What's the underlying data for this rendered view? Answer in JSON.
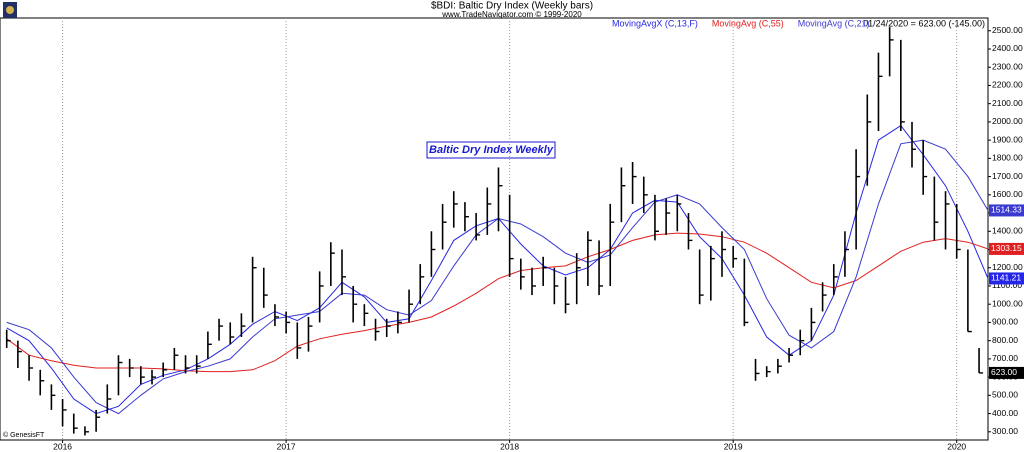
{
  "chart_data": {
    "type": "ohlc",
    "title": "$BDI:  Baltic Dry Index  (Weekly bars)",
    "subtitle": "www.TradeNavigator.com © 1999-2020",
    "status": "01/24/2020 = 623.00 (-145.00)",
    "annotation": "Baltic Dry Index Weekly",
    "watermark": "© GenesisFT",
    "color": "#000000",
    "grid": "x",
    "xlim": [
      2015.72,
      2020.14
    ],
    "xticks": [
      2016,
      2017,
      2018,
      2019,
      2020
    ],
    "ylim": [
      255,
      2570
    ],
    "yticks": [
      {
        "value": 300,
        "label": "300.00"
      },
      {
        "value": 400,
        "label": "400.00"
      },
      {
        "value": 500,
        "label": "500.00"
      },
      {
        "value": 600,
        "label": "600.00"
      },
      {
        "value": 700,
        "label": "700.00"
      },
      {
        "value": 800,
        "label": "800.00"
      },
      {
        "value": 900,
        "label": "900.00"
      },
      {
        "value": 1000,
        "label": "1000.00"
      },
      {
        "value": 1100,
        "label": "1100.00"
      },
      {
        "value": 1200,
        "label": "1200.00"
      },
      {
        "value": 1300,
        "label": "1300.00"
      },
      {
        "value": 1400,
        "label": "1400.00"
      },
      {
        "value": 1500,
        "label": "1500.00"
      },
      {
        "value": 1600,
        "label": "1600.00"
      },
      {
        "value": 1700,
        "label": "1700.00"
      },
      {
        "value": 1800,
        "label": "1800.00"
      },
      {
        "value": 1900,
        "label": "1900.00"
      },
      {
        "value": 2000,
        "label": "2000.00"
      },
      {
        "value": 2100,
        "label": "2100.00"
      },
      {
        "value": 2200,
        "label": "2200.00"
      },
      {
        "value": 2300,
        "label": "2300.00"
      },
      {
        "value": 2400,
        "label": "2400.00"
      },
      {
        "value": 2500,
        "label": "2500.00"
      }
    ],
    "x": [
      2015.75,
      2015.8,
      2015.85,
      2015.9,
      2015.95,
      2016.0,
      2016.05,
      2016.1,
      2016.15,
      2016.2,
      2016.25,
      2016.3,
      2016.35,
      2016.4,
      2016.45,
      2016.5,
      2016.55,
      2016.6,
      2016.65,
      2016.7,
      2016.75,
      2016.8,
      2016.85,
      2016.9,
      2016.95,
      2017.0,
      2017.05,
      2017.1,
      2017.15,
      2017.2,
      2017.25,
      2017.3,
      2017.35,
      2017.4,
      2017.45,
      2017.5,
      2017.55,
      2017.6,
      2017.65,
      2017.7,
      2017.75,
      2017.8,
      2017.85,
      2017.9,
      2017.95,
      2018.0,
      2018.05,
      2018.1,
      2018.15,
      2018.2,
      2018.25,
      2018.3,
      2018.35,
      2018.4,
      2018.45,
      2018.5,
      2018.55,
      2018.6,
      2018.65,
      2018.7,
      2018.75,
      2018.8,
      2018.85,
      2018.9,
      2018.95,
      2019.0,
      2019.05,
      2019.1,
      2019.15,
      2019.2,
      2019.25,
      2019.3,
      2019.35,
      2019.4,
      2019.45,
      2019.5,
      2019.55,
      2019.6,
      2019.65,
      2019.7,
      2019.75,
      2019.8,
      2019.85,
      2019.9,
      2019.95,
      2020.0,
      2020.05,
      2020.1
    ],
    "high": [
      860,
      800,
      720,
      640,
      560,
      480,
      400,
      330,
      420,
      560,
      720,
      700,
      660,
      640,
      680,
      760,
      720,
      720,
      850,
      920,
      900,
      950,
      1260,
      1200,
      1000,
      960,
      900,
      930,
      1180,
      1340,
      1300,
      1100,
      1000,
      920,
      920,
      960,
      1080,
      1220,
      1400,
      1550,
      1620,
      1560,
      1500,
      1640,
      1750,
      1600,
      1250,
      1200,
      1260,
      1200,
      1150,
      1280,
      1400,
      1350,
      1550,
      1750,
      1780,
      1700,
      1600,
      1580,
      1600,
      1500,
      1300,
      1320,
      1400,
      1320,
      1250,
      700,
      660,
      700,
      760,
      860,
      980,
      1120,
      1220,
      1400,
      1850,
      2150,
      2380,
      2520,
      2450,
      2000,
      1900,
      1700,
      1620,
      1550,
      1300,
      760
    ],
    "low": [
      760,
      650,
      580,
      500,
      420,
      330,
      290,
      280,
      300,
      400,
      500,
      600,
      560,
      560,
      600,
      640,
      620,
      620,
      700,
      800,
      780,
      820,
      900,
      980,
      880,
      840,
      700,
      740,
      900,
      1100,
      1050,
      900,
      880,
      800,
      820,
      840,
      900,
      1000,
      1150,
      1300,
      1420,
      1400,
      1350,
      1380,
      1400,
      1150,
      1080,
      1050,
      1100,
      1000,
      950,
      1000,
      1100,
      1050,
      1100,
      1450,
      1550,
      1500,
      1350,
      1380,
      1400,
      1300,
      1000,
      1020,
      1150,
      1200,
      880,
      580,
      600,
      620,
      680,
      720,
      800,
      960,
      1050,
      1150,
      1300,
      1650,
      1950,
      2250,
      1950,
      1750,
      1600,
      1350,
      1300,
      1250,
      850,
      623
    ],
    "close": [
      800,
      740,
      650,
      580,
      500,
      420,
      320,
      300,
      380,
      480,
      680,
      650,
      600,
      600,
      640,
      720,
      650,
      660,
      780,
      880,
      820,
      880,
      1200,
      1050,
      930,
      900,
      760,
      880,
      1100,
      1280,
      1150,
      1000,
      950,
      850,
      880,
      900,
      1000,
      1150,
      1300,
      1450,
      1550,
      1480,
      1380,
      1550,
      1650,
      1250,
      1150,
      1100,
      1200,
      1100,
      1000,
      1200,
      1350,
      1100,
      1450,
      1650,
      1700,
      1600,
      1400,
      1500,
      1550,
      1350,
      1050,
      1250,
      1300,
      1250,
      900,
      620,
      630,
      660,
      720,
      800,
      900,
      1050,
      1150,
      1300,
      1700,
      2000,
      2250,
      2450,
      2000,
      1850,
      1700,
      1450,
      1550,
      1300,
      850,
      623
    ],
    "close_label": "623.00",
    "series": [
      {
        "name": "MovingAvgX (C,13,F)",
        "color": "#2626e6",
        "end_label": "1141.21",
        "x": [
          2015.75,
          2015.85,
          2015.95,
          2016.05,
          2016.15,
          2016.25,
          2016.35,
          2016.45,
          2016.55,
          2016.65,
          2016.75,
          2016.85,
          2016.95,
          2017.05,
          2017.15,
          2017.25,
          2017.35,
          2017.45,
          2017.55,
          2017.65,
          2017.75,
          2017.85,
          2017.95,
          2018.05,
          2018.15,
          2018.25,
          2018.35,
          2018.45,
          2018.55,
          2018.65,
          2018.75,
          2018.85,
          2018.95,
          2019.05,
          2019.15,
          2019.25,
          2019.35,
          2019.45,
          2019.55,
          2019.65,
          2019.75,
          2019.85,
          2019.95,
          2020.05,
          2020.14
        ],
        "values": [
          870,
          800,
          650,
          480,
          400,
          440,
          560,
          610,
          640,
          700,
          780,
          890,
          960,
          910,
          980,
          1120,
          1040,
          900,
          920,
          1130,
          1350,
          1430,
          1470,
          1330,
          1210,
          1160,
          1200,
          1300,
          1500,
          1570,
          1560,
          1370,
          1250,
          1050,
          820,
          720,
          800,
          1050,
          1500,
          1900,
          1980,
          1820,
          1650,
          1400,
          1141.21
        ]
      },
      {
        "name": "MovingAvg (C,55)",
        "color": "#e02020",
        "end_label": "1303.15",
        "x": [
          2015.75,
          2015.85,
          2015.95,
          2016.05,
          2016.15,
          2016.25,
          2016.35,
          2016.45,
          2016.55,
          2016.65,
          2016.75,
          2016.85,
          2016.95,
          2017.05,
          2017.15,
          2017.25,
          2017.35,
          2017.45,
          2017.55,
          2017.65,
          2017.75,
          2017.85,
          2017.95,
          2018.05,
          2018.15,
          2018.25,
          2018.35,
          2018.45,
          2018.55,
          2018.65,
          2018.75,
          2018.85,
          2018.95,
          2019.05,
          2019.15,
          2019.25,
          2019.35,
          2019.45,
          2019.55,
          2019.65,
          2019.75,
          2019.85,
          2019.95,
          2020.05,
          2020.14
        ],
        "values": [
          810,
          720,
          690,
          665,
          650,
          650,
          650,
          645,
          635,
          630,
          630,
          640,
          690,
          770,
          810,
          835,
          855,
          880,
          900,
          930,
          990,
          1060,
          1140,
          1185,
          1200,
          1210,
          1260,
          1300,
          1350,
          1380,
          1390,
          1385,
          1370,
          1340,
          1280,
          1200,
          1120,
          1090,
          1130,
          1210,
          1290,
          1340,
          1360,
          1340,
          1303.15
        ]
      },
      {
        "name": "MovingAvg (C,21)",
        "color": "#3a3ad0",
        "end_label": "1514.33",
        "x": [
          2015.75,
          2015.85,
          2015.95,
          2016.05,
          2016.15,
          2016.25,
          2016.35,
          2016.45,
          2016.55,
          2016.65,
          2016.75,
          2016.85,
          2016.95,
          2017.05,
          2017.15,
          2017.25,
          2017.35,
          2017.45,
          2017.55,
          2017.65,
          2017.75,
          2017.85,
          2017.95,
          2018.05,
          2018.15,
          2018.25,
          2018.35,
          2018.45,
          2018.55,
          2018.65,
          2018.75,
          2018.85,
          2018.95,
          2019.05,
          2019.15,
          2019.25,
          2019.35,
          2019.45,
          2019.55,
          2019.65,
          2019.75,
          2019.85,
          2019.95,
          2020.05,
          2020.14
        ],
        "values": [
          900,
          860,
          760,
          600,
          460,
          400,
          500,
          590,
          630,
          660,
          700,
          820,
          920,
          940,
          960,
          1060,
          1050,
          970,
          940,
          1020,
          1210,
          1380,
          1470,
          1440,
          1370,
          1280,
          1230,
          1270,
          1420,
          1560,
          1600,
          1550,
          1420,
          1300,
          1030,
          830,
          760,
          850,
          1150,
          1550,
          1880,
          1900,
          1850,
          1700,
          1514.33
        ]
      }
    ]
  }
}
